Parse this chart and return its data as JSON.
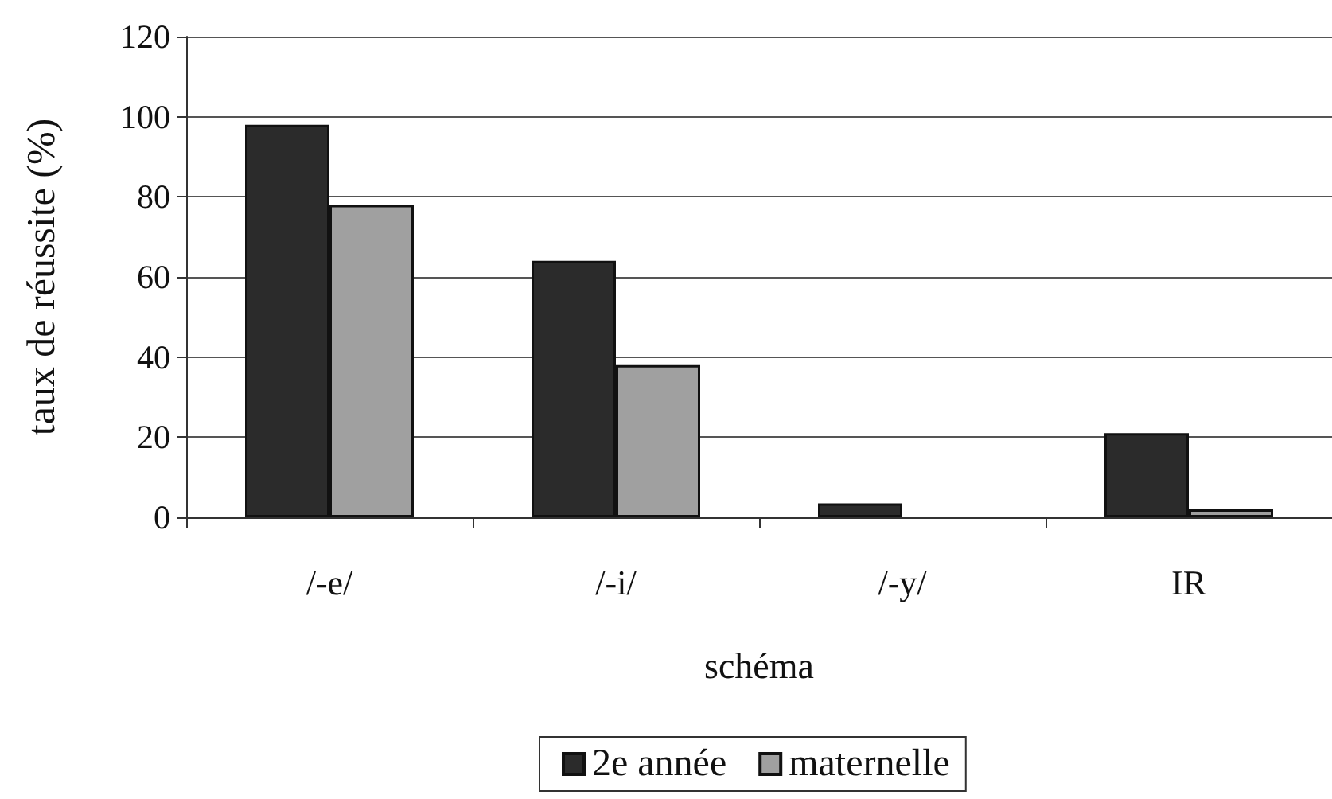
{
  "chart_data": {
    "type": "bar",
    "xlabel": "schéma",
    "ylabel": "taux de réussite (%)",
    "categories": [
      "/-e/",
      "/-i/",
      "/-y/",
      "IR"
    ],
    "series": [
      {
        "name": "2e année",
        "color": "#2b2b2b",
        "values": [
          98,
          64,
          3.5,
          21
        ]
      },
      {
        "name": "maternelle",
        "color": "#a0a0a0",
        "values": [
          78,
          38,
          0,
          2
        ]
      }
    ],
    "ylim": [
      0,
      120
    ],
    "yticks": [
      0,
      20,
      40,
      60,
      80,
      100,
      120
    ],
    "grid": "y",
    "legend": "bottom"
  }
}
